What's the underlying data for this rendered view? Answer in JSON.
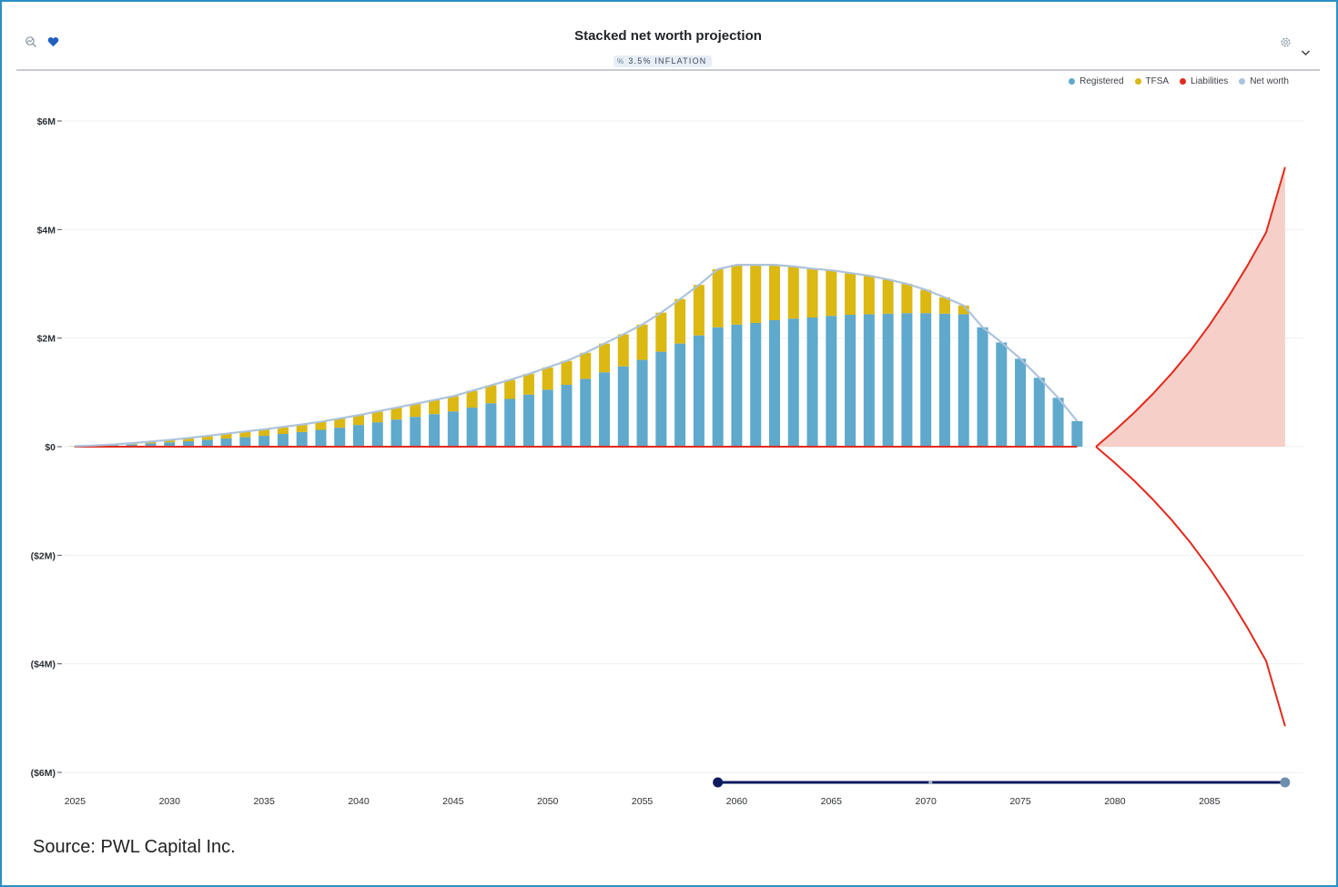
{
  "header": {
    "title": "Stacked net worth projection",
    "badge_text": "3.5% INFLATION",
    "left_icons": [
      "line-chart-compare-icon",
      "heart-icon"
    ],
    "right_icons": [
      "gear-icon",
      "chevron-down-icon"
    ]
  },
  "source": "Source: PWL Capital Inc.",
  "colors": {
    "registered": "#5ea9cc",
    "tfsa": "#dbb812",
    "liabilities": "#e12b1d",
    "liabilities_fill": "#f6cfc8",
    "net_worth": "#adc3dc",
    "slider": "#0e1b5e"
  },
  "chart_data": {
    "type": "bar",
    "stacked": true,
    "x": [
      2025,
      2026,
      2027,
      2028,
      2029,
      2030,
      2031,
      2032,
      2033,
      2034,
      2035,
      2036,
      2037,
      2038,
      2039,
      2040,
      2041,
      2042,
      2043,
      2044,
      2045,
      2046,
      2047,
      2048,
      2049,
      2050,
      2051,
      2052,
      2053,
      2054,
      2055,
      2056,
      2057,
      2058,
      2059,
      2060,
      2061,
      2062,
      2063,
      2064,
      2065,
      2066,
      2067,
      2068,
      2069,
      2070,
      2071,
      2072,
      2073,
      2074,
      2075,
      2076,
      2077,
      2078,
      2079,
      2080,
      2081,
      2082,
      2083,
      2084,
      2085,
      2086,
      2087,
      2088,
      2089
    ],
    "series": [
      {
        "name": "Registered",
        "type": "bar",
        "values": [
          0.005,
          0.012,
          0.025,
          0.04,
          0.06,
          0.08,
          0.1,
          0.125,
          0.15,
          0.175,
          0.2,
          0.235,
          0.27,
          0.31,
          0.35,
          0.4,
          0.45,
          0.5,
          0.55,
          0.6,
          0.65,
          0.72,
          0.8,
          0.88,
          0.96,
          1.05,
          1.14,
          1.25,
          1.37,
          1.48,
          1.6,
          1.75,
          1.9,
          2.05,
          2.2,
          2.25,
          2.28,
          2.33,
          2.36,
          2.38,
          2.41,
          2.43,
          2.44,
          2.45,
          2.46,
          2.46,
          2.45,
          2.44,
          2.2,
          1.92,
          1.62,
          1.27,
          0.9,
          0.47,
          0,
          0,
          0,
          0,
          0,
          0,
          0,
          0,
          0,
          0,
          0
        ]
      },
      {
        "name": "TFSA",
        "type": "bar",
        "values": [
          0.005,
          0.01,
          0.015,
          0.025,
          0.035,
          0.045,
          0.06,
          0.075,
          0.09,
          0.105,
          0.12,
          0.13,
          0.14,
          0.15,
          0.17,
          0.18,
          0.2,
          0.22,
          0.24,
          0.26,
          0.28,
          0.31,
          0.33,
          0.35,
          0.38,
          0.41,
          0.44,
          0.48,
          0.53,
          0.59,
          0.65,
          0.72,
          0.82,
          0.93,
          1.07,
          1.1,
          1.07,
          1.02,
          0.96,
          0.9,
          0.84,
          0.77,
          0.71,
          0.63,
          0.54,
          0.43,
          0.3,
          0.16,
          0,
          0,
          0,
          0,
          0,
          0,
          0,
          0,
          0,
          0,
          0,
          0,
          0,
          0,
          0,
          0,
          0
        ]
      },
      {
        "name": "Liabilities",
        "type": "line",
        "values": [
          0,
          0,
          0,
          0,
          0,
          0,
          0,
          0,
          0,
          0,
          0,
          0,
          0,
          0,
          0,
          0,
          0,
          0,
          0,
          0,
          0,
          0,
          0,
          0,
          0,
          0,
          0,
          0,
          0,
          0,
          0,
          0,
          0,
          0,
          0,
          0,
          0,
          0,
          0,
          0,
          0,
          0,
          0,
          0,
          0,
          0,
          0,
          0,
          0,
          0,
          0,
          0,
          0,
          0,
          0,
          -0.3,
          -0.62,
          -0.97,
          -1.35,
          -1.77,
          -2.24,
          -2.76,
          -3.33,
          -3.95,
          -5.15
        ]
      },
      {
        "name": "Net worth",
        "type": "line",
        "values": [
          0.01,
          0.022,
          0.04,
          0.065,
          0.095,
          0.125,
          0.16,
          0.2,
          0.24,
          0.28,
          0.32,
          0.365,
          0.41,
          0.46,
          0.52,
          0.58,
          0.65,
          0.72,
          0.79,
          0.86,
          0.93,
          1.03,
          1.13,
          1.23,
          1.34,
          1.46,
          1.58,
          1.73,
          1.9,
          2.07,
          2.25,
          2.47,
          2.72,
          2.98,
          3.27,
          3.35,
          3.35,
          3.35,
          3.32,
          3.28,
          3.25,
          3.2,
          3.15,
          3.08,
          3.0,
          2.89,
          2.75,
          2.6,
          2.2,
          1.92,
          1.62,
          1.27,
          0.9,
          0.47,
          0,
          0,
          0,
          0,
          0,
          0,
          0,
          0,
          0,
          0,
          0
        ]
      }
    ],
    "shortfall_area": {
      "values": [
        0,
        0,
        0,
        0,
        0,
        0,
        0,
        0,
        0,
        0,
        0,
        0,
        0,
        0,
        0,
        0,
        0,
        0,
        0,
        0,
        0,
        0,
        0,
        0,
        0,
        0,
        0,
        0,
        0,
        0,
        0,
        0,
        0,
        0,
        0,
        0,
        0,
        0,
        0,
        0,
        0,
        0,
        0,
        0,
        0,
        0,
        0,
        0,
        0,
        0,
        0,
        0,
        0,
        0,
        0,
        0.3,
        0.62,
        0.97,
        1.35,
        1.77,
        2.24,
        2.76,
        3.33,
        3.95,
        5.15
      ]
    },
    "xticks": [
      2025,
      2030,
      2035,
      2040,
      2045,
      2050,
      2055,
      2060,
      2065,
      2070,
      2075,
      2080,
      2085
    ],
    "yticks": [
      6,
      4,
      2,
      0,
      -2,
      -4,
      -6
    ],
    "ytick_labels": [
      "$6M",
      "$4M",
      "$2M",
      "$0",
      "($2M)",
      "($4M)",
      "($6M)"
    ],
    "xlim": [
      2024,
      2090
    ],
    "ylim": [
      -6,
      6
    ],
    "unit": "millions CAD",
    "legend": [
      "Registered",
      "TFSA",
      "Liabilities",
      "Net worth"
    ],
    "legend_position": "top-right",
    "range_slider": {
      "start": 2059,
      "end": 2089
    }
  }
}
